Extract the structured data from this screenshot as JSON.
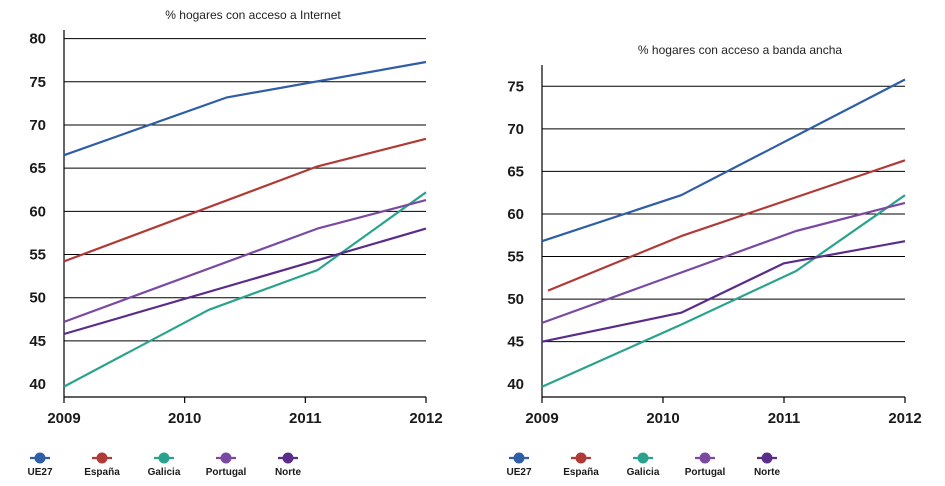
{
  "chart_data": [
    {
      "type": "line",
      "title": "% hogares con acceso a Internet",
      "xlabel": "",
      "ylabel": "",
      "x_ticks": [
        "2009",
        "2010",
        "2011",
        "2012"
      ],
      "xlim": [
        2009,
        2012
      ],
      "y_ticks": [
        40,
        45,
        50,
        55,
        60,
        65,
        70,
        75,
        80
      ],
      "ylim": [
        38.5,
        81
      ],
      "grid": true,
      "legend_position": "bottom",
      "series": [
        {
          "name": "UE27",
          "color": "#2f5da6",
          "x": [
            2009,
            2010.35,
            2012
          ],
          "y": [
            66.5,
            73.2,
            77.3
          ]
        },
        {
          "name": "España",
          "color": "#b03a36",
          "x": [
            2009,
            2011.1,
            2012
          ],
          "y": [
            54.2,
            65.2,
            68.4
          ]
        },
        {
          "name": "Galicia",
          "color": "#2aa38e",
          "x": [
            2009,
            2010.2,
            2011.1,
            2012
          ],
          "y": [
            39.7,
            48.6,
            53.2,
            62.2
          ]
        },
        {
          "name": "Portugal",
          "color": "#7a4aa2",
          "x": [
            2009,
            2011.1,
            2012
          ],
          "y": [
            47.2,
            58.0,
            61.3
          ]
        },
        {
          "name": "Norte",
          "color": "#5a2d8a",
          "x": [
            2009,
            2012
          ],
          "y": [
            45.8,
            58.0
          ]
        }
      ]
    },
    {
      "type": "line",
      "title": "% hogares con acceso a banda ancha",
      "xlabel": "",
      "ylabel": "",
      "x_ticks": [
        "2009",
        "2010",
        "2011",
        "2012"
      ],
      "xlim": [
        2009,
        2012
      ],
      "y_ticks": [
        40,
        45,
        50,
        55,
        60,
        65,
        70,
        75
      ],
      "ylim": [
        38.5,
        77.5
      ],
      "grid": true,
      "legend_position": "bottom",
      "series": [
        {
          "name": "UE27",
          "color": "#2f5da6",
          "x": [
            2009,
            2010.15,
            2012
          ],
          "y": [
            56.8,
            62.2,
            75.8
          ]
        },
        {
          "name": "España",
          "color": "#b03a36",
          "x": [
            2009.05,
            2010.15,
            2012
          ],
          "y": [
            51.0,
            57.4,
            66.3
          ]
        },
        {
          "name": "Galicia",
          "color": "#2aa38e",
          "x": [
            2009,
            2010.15,
            2011.1,
            2012
          ],
          "y": [
            39.7,
            47.0,
            53.3,
            62.2
          ]
        },
        {
          "name": "Portugal",
          "color": "#7a4aa2",
          "x": [
            2009,
            2011.1,
            2012
          ],
          "y": [
            47.2,
            58.0,
            61.3
          ]
        },
        {
          "name": "Norte",
          "color": "#5a2d8a",
          "x": [
            2009,
            2010.15,
            2011.0,
            2012
          ],
          "y": [
            45.0,
            48.4,
            54.2,
            56.8
          ]
        }
      ]
    }
  ]
}
